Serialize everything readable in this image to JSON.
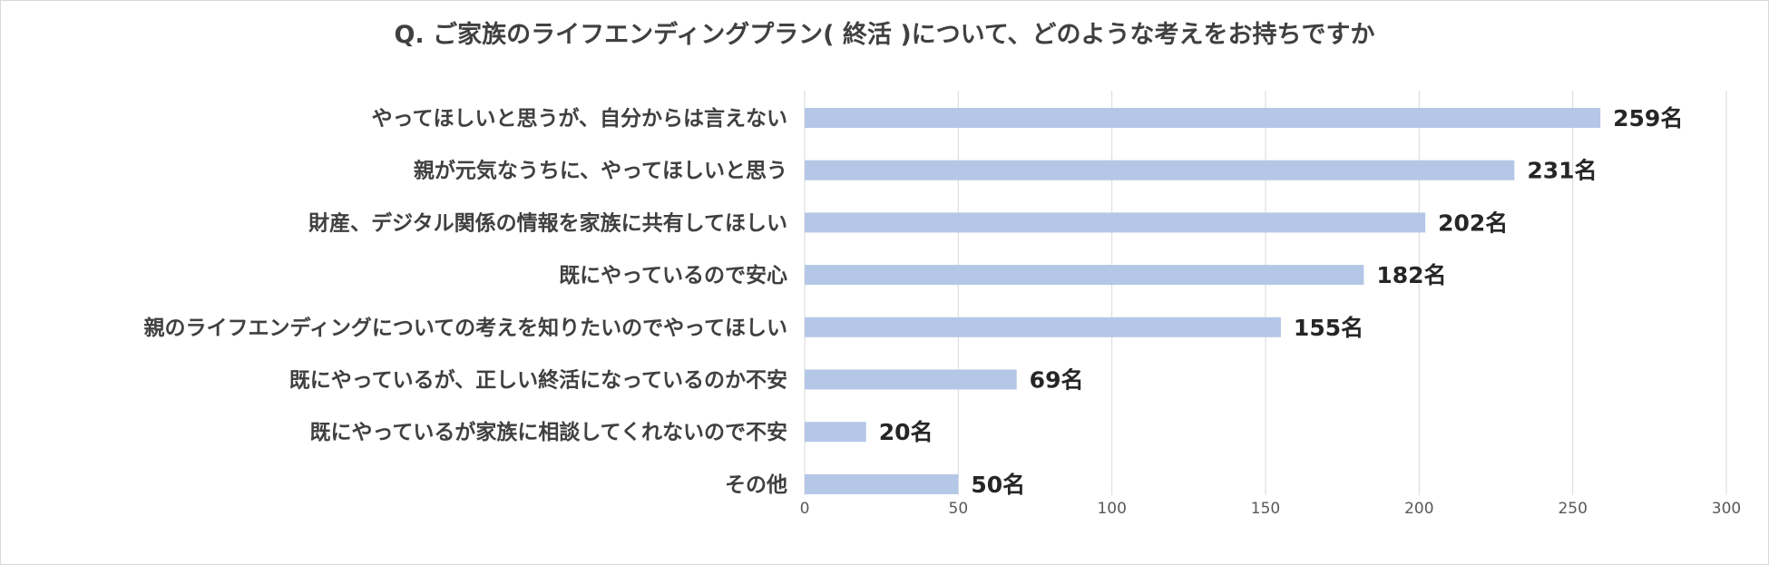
{
  "chart_data": {
    "type": "bar",
    "orientation": "horizontal",
    "title": "Q. ご家族のライフエンディングプラン( 終活 )について、どのような考えをお持ちですか",
    "categories": [
      "やってほしいと思うが、自分からは言えない",
      "親が元気なうちに、やってほしいと思う",
      "財産、デジタル関係の情報を家族に共有してほしい",
      "既にやっているので安心",
      "親のライフエンディングについての考えを知りたいのでやってほしい",
      "既にやっているが、正しい終活になっているのか不安",
      "既にやっているが家族に相談してくれないので不安",
      "その他"
    ],
    "values": [
      259,
      231,
      202,
      182,
      155,
      69,
      20,
      50
    ],
    "data_labels": [
      "259名",
      "231名",
      "202名",
      "182名",
      "155名",
      "69名",
      "20名",
      "50名"
    ],
    "xlim": [
      0,
      300
    ],
    "x_ticks": [
      0,
      50,
      100,
      150,
      200,
      250,
      300
    ],
    "x_tick_labels": [
      "0",
      "50",
      "100",
      "150",
      "200",
      "250",
      "300"
    ],
    "grid": true,
    "legend": "none",
    "bar_color": "#b4c7e7"
  }
}
